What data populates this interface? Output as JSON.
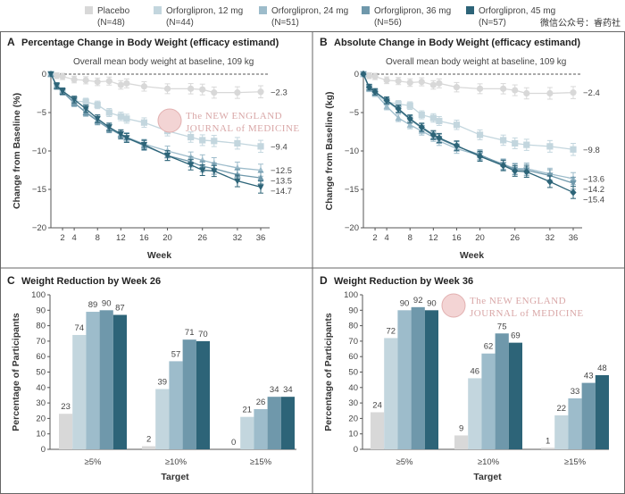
{
  "legend": [
    {
      "name": "Placebo",
      "n": "(N=48)",
      "color": "#d8d8d8"
    },
    {
      "name": "Orforglipron, 12 mg",
      "n": "(N=44)",
      "color": "#c3d6de"
    },
    {
      "name": "Orforglipron, 24 mg",
      "n": "(N=51)",
      "color": "#9dbccb"
    },
    {
      "name": "Orforglipron, 36 mg",
      "n": "(N=56)",
      "color": "#6f98ab"
    },
    {
      "name": "Orforglipron, 45 mg",
      "n": "(N=57)",
      "color": "#2d6478"
    }
  ],
  "overlay_text": "微信公众号：睿药社",
  "watermark": {
    "line1": "The NEW ENGLAND",
    "line2": "JOURNAL of MEDICINE"
  },
  "chart_data": [
    {
      "panel": "A",
      "type": "line",
      "title": "Percentage Change in Body Weight (efficacy estimand)",
      "subtitle": "Overall mean body weight at baseline, 109 kg",
      "xlabel": "Week",
      "ylabel": "Change from Baseline (%)",
      "ylim": [
        -20,
        0
      ],
      "yticks": [
        0,
        -5,
        -10,
        -15,
        -20
      ],
      "xticks": [
        2,
        4,
        8,
        12,
        16,
        20,
        26,
        32,
        36
      ],
      "xlim": [
        0,
        36
      ],
      "x": [
        0,
        1,
        2,
        4,
        6,
        8,
        10,
        12,
        13,
        16,
        20,
        24,
        26,
        28,
        32,
        36
      ],
      "series": [
        {
          "name": "Placebo",
          "marker": "circle",
          "values": [
            0,
            -0.2,
            -0.3,
            -0.7,
            -0.8,
            -1.0,
            -0.9,
            -1.4,
            -1.2,
            -1.6,
            -1.9,
            -1.9,
            -2.0,
            -2.4,
            -2.4,
            -2.3
          ],
          "end_label": "−2.3"
        },
        {
          "name": "Orforglipron, 12 mg",
          "marker": "square",
          "values": [
            0,
            -1.5,
            -2.2,
            -3.5,
            -3.6,
            -4.0,
            -5.0,
            -5.5,
            -5.8,
            -6.3,
            -7.4,
            -8.2,
            -8.6,
            -8.7,
            -9.0,
            -9.4
          ],
          "end_label": "−9.4"
        },
        {
          "name": "Orforglipron, 24 mg",
          "marker": "triangle-up",
          "values": [
            0,
            -1.6,
            -2.3,
            -3.8,
            -4.9,
            -6.0,
            -7.0,
            -7.8,
            -8.2,
            -9.1,
            -10.0,
            -10.8,
            -11.2,
            -11.6,
            -12.2,
            -12.5
          ],
          "end_label": "−12.5"
        },
        {
          "name": "Orforglipron, 36 mg",
          "marker": "triangle-up",
          "values": [
            0,
            -1.6,
            -2.3,
            -3.7,
            -5.0,
            -6.1,
            -7.1,
            -7.9,
            -8.3,
            -9.3,
            -10.6,
            -11.4,
            -12.0,
            -12.3,
            -13.1,
            -13.5
          ],
          "end_label": "−13.5"
        },
        {
          "name": "Orforglipron, 45 mg",
          "marker": "triangle-down",
          "values": [
            0,
            -1.5,
            -2.2,
            -3.3,
            -4.5,
            -5.8,
            -6.9,
            -7.8,
            -8.3,
            -9.2,
            -10.6,
            -11.8,
            -12.5,
            -12.6,
            -13.9,
            -14.7
          ],
          "end_label": "−14.7"
        }
      ]
    },
    {
      "panel": "B",
      "type": "line",
      "title": "Absolute Change in Body Weight (efficacy estimand)",
      "subtitle": "Overall mean body weight at baseline, 109 kg",
      "xlabel": "Week",
      "ylabel": "Change from Baseline (kg)",
      "ylim": [
        -20,
        0
      ],
      "yticks": [
        0,
        -5,
        -10,
        -15,
        -20
      ],
      "xticks": [
        2,
        4,
        8,
        12,
        16,
        20,
        26,
        32,
        36
      ],
      "xlim": [
        0,
        36
      ],
      "x": [
        0,
        1,
        2,
        4,
        6,
        8,
        10,
        12,
        13,
        16,
        20,
        24,
        26,
        28,
        32,
        36
      ],
      "series": [
        {
          "name": "Placebo",
          "marker": "circle",
          "values": [
            0,
            -0.2,
            -0.3,
            -0.8,
            -0.9,
            -1.1,
            -1.0,
            -1.4,
            -1.2,
            -1.7,
            -1.9,
            -1.9,
            -2.1,
            -2.5,
            -2.5,
            -2.4
          ],
          "end_label": "−2.4"
        },
        {
          "name": "Orforglipron, 12 mg",
          "marker": "square",
          "values": [
            0,
            -1.8,
            -2.5,
            -3.6,
            -3.9,
            -4.1,
            -5.3,
            -5.7,
            -6.1,
            -6.6,
            -7.9,
            -8.6,
            -9.0,
            -9.2,
            -9.4,
            -9.8
          ],
          "end_label": "−9.8"
        },
        {
          "name": "Orforglipron, 24 mg",
          "marker": "triangle-up",
          "values": [
            0,
            -1.9,
            -2.5,
            -4.2,
            -5.7,
            -6.6,
            -7.4,
            -8.2,
            -8.7,
            -9.7,
            -10.6,
            -11.7,
            -12.3,
            -12.3,
            -13.0,
            -13.6
          ],
          "end_label": "−13.6"
        },
        {
          "name": "Orforglipron, 36 mg",
          "marker": "triangle-down",
          "values": [
            0,
            -1.7,
            -2.3,
            -3.5,
            -4.6,
            -5.9,
            -7.0,
            -8.0,
            -8.4,
            -9.4,
            -10.5,
            -11.8,
            -12.4,
            -12.5,
            -13.2,
            -14.2
          ],
          "end_label": "−14.2"
        },
        {
          "name": "Orforglipron, 45 mg",
          "marker": "diamond",
          "values": [
            0,
            -1.7,
            -2.3,
            -3.4,
            -4.5,
            -5.8,
            -6.9,
            -7.9,
            -8.3,
            -9.3,
            -10.7,
            -11.9,
            -12.6,
            -12.7,
            -14.0,
            -15.4
          ],
          "end_label": "−15.4"
        }
      ]
    },
    {
      "panel": "C",
      "type": "bar",
      "title": "Weight Reduction by Week 26",
      "xlabel": "Target",
      "ylabel": "Percentage of Participants",
      "ylim": [
        0,
        100
      ],
      "yticks": [
        0,
        10,
        20,
        30,
        40,
        50,
        60,
        70,
        80,
        90,
        100
      ],
      "categories": [
        "≥5%",
        "≥10%",
        "≥15%"
      ],
      "series": [
        {
          "name": "Placebo",
          "values": [
            23,
            2,
            0
          ]
        },
        {
          "name": "Orforglipron, 12 mg",
          "values": [
            74,
            39,
            21
          ]
        },
        {
          "name": "Orforglipron, 24 mg",
          "values": [
            89,
            57,
            26
          ]
        },
        {
          "name": "Orforglipron, 36 mg",
          "values": [
            90,
            71,
            34
          ]
        },
        {
          "name": "Orforglipron, 45 mg",
          "values": [
            87,
            70,
            34
          ]
        }
      ]
    },
    {
      "panel": "D",
      "type": "bar",
      "title": "Weight Reduction by Week 36",
      "xlabel": "Target",
      "ylabel": "Percentage of Participants",
      "ylim": [
        0,
        100
      ],
      "yticks": [
        0,
        10,
        20,
        30,
        40,
        50,
        60,
        70,
        80,
        90,
        100
      ],
      "categories": [
        "≥5%",
        "≥10%",
        "≥15%"
      ],
      "series": [
        {
          "name": "Placebo",
          "values": [
            24,
            9,
            1
          ]
        },
        {
          "name": "Orforglipron, 12 mg",
          "values": [
            72,
            46,
            22
          ]
        },
        {
          "name": "Orforglipron, 24 mg",
          "values": [
            90,
            62,
            33
          ]
        },
        {
          "name": "Orforglipron, 36 mg",
          "values": [
            92,
            75,
            43
          ]
        },
        {
          "name": "Orforglipron, 45 mg",
          "values": [
            90,
            69,
            48
          ]
        }
      ]
    }
  ]
}
